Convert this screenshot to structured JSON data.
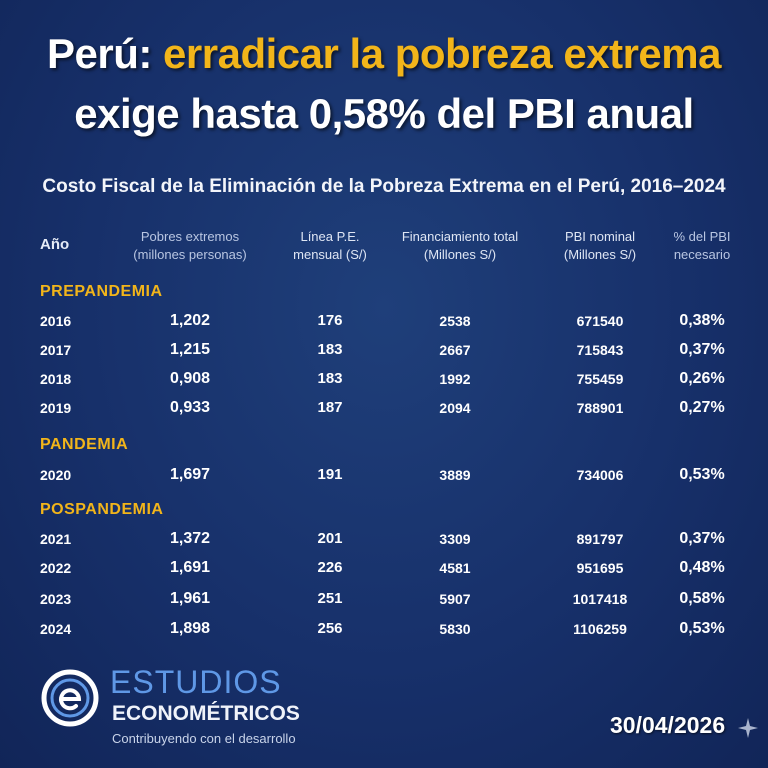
{
  "title": {
    "country": "Perú:",
    "accent": "erradicar la pobreza extrema",
    "line2": "exige hasta 0,58% del PBI anual"
  },
  "subtitle": "Costo Fiscal de la Eliminación de la Pobreza Extrema en el Perú, 2016–2024",
  "headers": {
    "year": "Año",
    "pobres_1": "Pobres extremos",
    "pobres_2": "(millones personas)",
    "linea_1": "Línea P.E.",
    "linea_2": "mensual (S/)",
    "fin_1": "Financiamiento total",
    "fin_2": "(Millones S/)",
    "pbi_1": "PBI nominal",
    "pbi_2": "(Millones S/)",
    "pct_1": "% del PBI",
    "pct_2": "necesario"
  },
  "sections": {
    "prepandemia": "PREPANDEMIA",
    "pandemia": "PANDEMIA",
    "pospandemia": "POSPANDEMIA"
  },
  "rows": [
    {
      "year": "2016",
      "pobres": "1,202",
      "linea": "176",
      "fin": "2538",
      "pbi": "671540",
      "pct": "0,38%"
    },
    {
      "year": "2017",
      "pobres": "1,215",
      "linea": "183",
      "fin": "2667",
      "pbi": "715843",
      "pct": "0,37%"
    },
    {
      "year": "2018",
      "pobres": "0,908",
      "linea": "183",
      "fin": "1992",
      "pbi": "755459",
      "pct": "0,26%"
    },
    {
      "year": "2019",
      "pobres": "0,933",
      "linea": "187",
      "fin": "2094",
      "pbi": "788901",
      "pct": "0,27%"
    },
    {
      "year": "2020",
      "pobres": "1,697",
      "linea": "191",
      "fin": "3889",
      "pbi": "734006",
      "pct": "0,53%"
    },
    {
      "year": "2021",
      "pobres": "1,372",
      "linea": "201",
      "fin": "3309",
      "pbi": "891797",
      "pct": "0,37%"
    },
    {
      "year": "2022",
      "pobres": "1,691",
      "linea": "226",
      "fin": "4581",
      "pbi": "951695",
      "pct": "0,48%"
    },
    {
      "year": "2023",
      "pobres": "1,961",
      "linea": "251",
      "fin": "5907",
      "pbi": "1017418",
      "pct": "0,58%"
    },
    {
      "year": "2024",
      "pobres": "1,898",
      "linea": "256",
      "fin": "5830",
      "pbi": "1106259",
      "pct": "0,53%"
    }
  ],
  "brand": {
    "name1": "ESTUDIOS",
    "name2": "ECONOMÉTRICOS",
    "tagline": "Contribuyendo con el desarrollo",
    "logo_icon": "e-logo-icon"
  },
  "date": "30/04/2026",
  "colors": {
    "background": "#17306a",
    "accent": "#f2b51a",
    "brand_blue": "#5f98e6"
  }
}
